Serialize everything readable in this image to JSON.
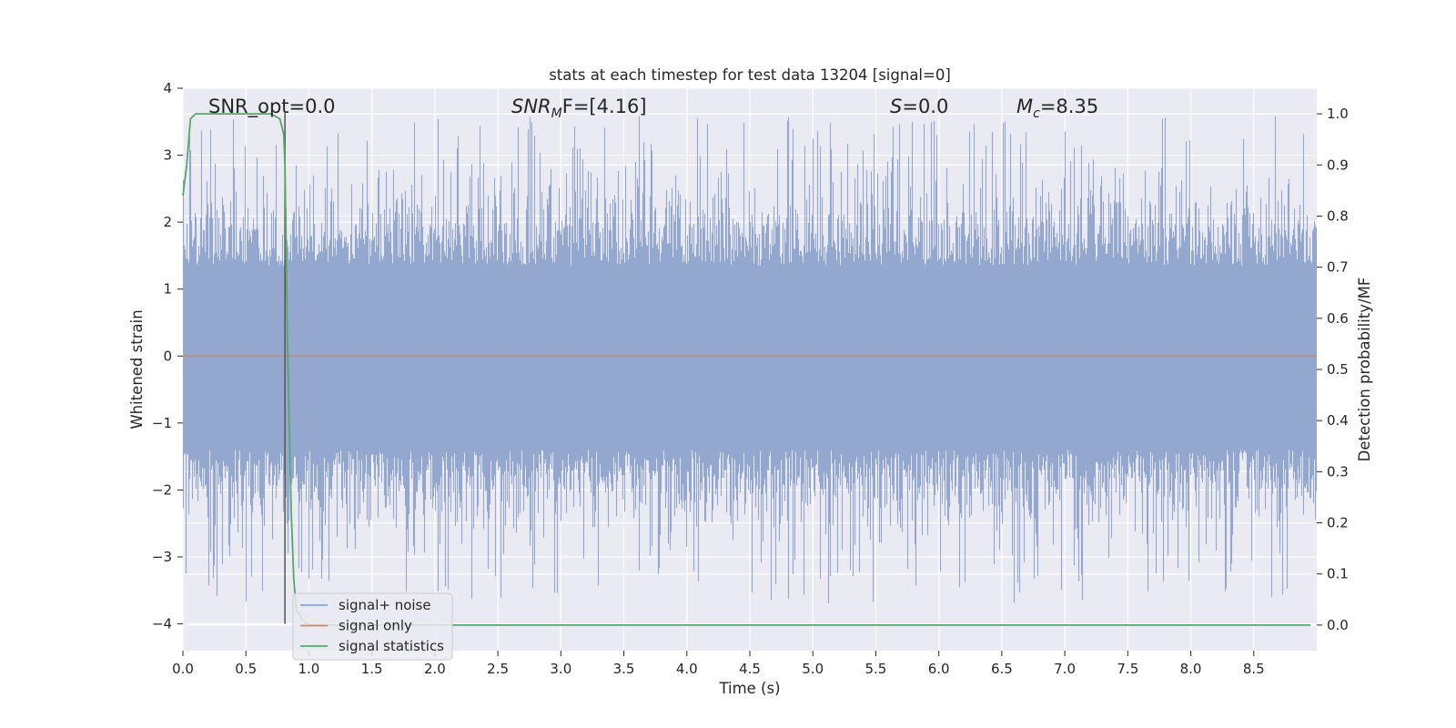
{
  "chart_data": {
    "type": "line",
    "title": "stats at each timestep for test data 13204 [signal=0]",
    "xlabel": "Time (s)",
    "ylabel": "Whitened strain",
    "ylabel_right": "Detection probability/MF",
    "xlim": [
      0.0,
      9.0
    ],
    "ylim": [
      -4.4,
      4.0
    ],
    "ylim_right": [
      -0.05,
      1.05
    ],
    "x_ticks": [
      "0.0",
      "0.5",
      "1.0",
      "1.5",
      "2.0",
      "2.5",
      "3.0",
      "3.5",
      "4.0",
      "4.5",
      "5.0",
      "5.5",
      "6.0",
      "6.5",
      "7.0",
      "7.5",
      "8.0",
      "8.5"
    ],
    "y_ticks": [
      "4",
      "3",
      "2",
      "1",
      "0",
      "−1",
      "−2",
      "−3",
      "−4"
    ],
    "y_ticks_right": [
      "1.0",
      "0.9",
      "0.8",
      "0.7",
      "0.6",
      "0.5",
      "0.4",
      "0.3",
      "0.2",
      "0.1",
      "0.0"
    ],
    "grid": true,
    "legend_position": "lower-left",
    "annotations": {
      "snr_opt": "SNR_opt=0.0",
      "snr_mf_main": "SNR",
      "snr_mf_sub": "M",
      "snr_mf_rest": "F=[4.16]",
      "s_main": "S",
      "s_rest": "=0.0",
      "mc_main": "M",
      "mc_sub": "c",
      "mc_rest": "=8.35"
    },
    "vertical_marker_x": 0.81,
    "series": [
      {
        "name": "signal+ noise",
        "color": "#8fa3cc",
        "axis": "left",
        "sample_rate_hz": 2048,
        "amplitude_envelope": {
          "typical_max": 2.0,
          "peak_max": 3.6,
          "peak_min": -4.0
        }
      },
      {
        "name": "signal only",
        "color": "#dd8452",
        "axis": "left",
        "x": [
          0.0,
          9.0
        ],
        "y": [
          0.0,
          0.0
        ]
      },
      {
        "name": "signal statistics",
        "color": "#55a868",
        "axis": "right",
        "x": [
          0.0,
          0.03,
          0.06,
          0.1,
          0.2,
          0.3,
          0.4,
          0.5,
          0.6,
          0.7,
          0.77,
          0.8,
          0.81,
          0.83,
          0.86,
          0.88,
          0.9,
          0.95,
          1.0,
          2.0,
          4.0,
          6.0,
          8.0,
          8.95
        ],
        "y": [
          0.84,
          0.9,
          0.99,
          1.0,
          1.0,
          1.0,
          1.0,
          1.0,
          1.0,
          1.0,
          0.99,
          0.96,
          0.9,
          0.55,
          0.22,
          0.09,
          0.03,
          0.01,
          0.0,
          0.0,
          0.0,
          0.0,
          0.0,
          0.0
        ]
      }
    ],
    "colors": {
      "plot_background": "#eaeaf2",
      "grid": "#ffffff",
      "marker_line": "#555555"
    }
  }
}
